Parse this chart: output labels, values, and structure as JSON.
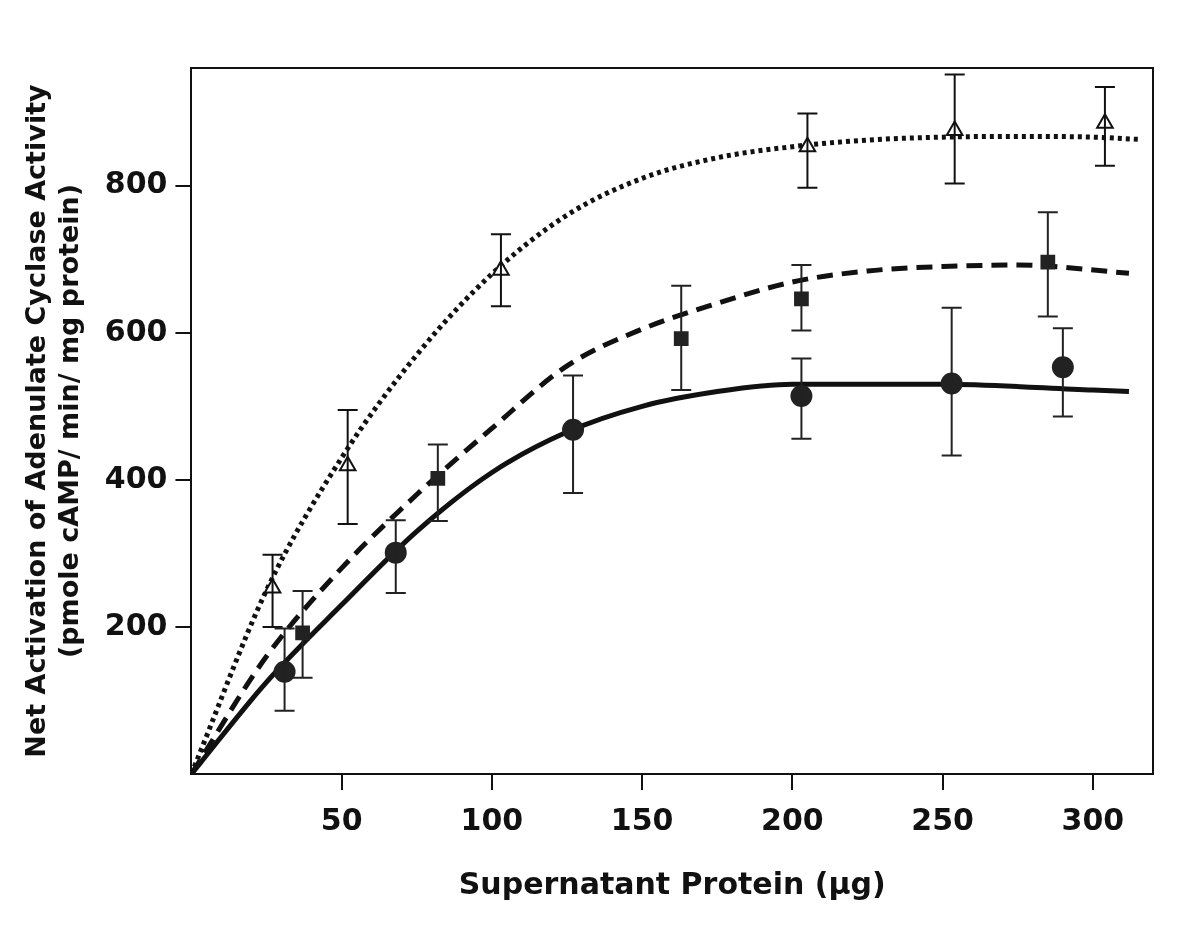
{
  "chart_data": {
    "type": "scatter",
    "xlabel": "Supernatant Protein (μg)",
    "ylabel": "Net Activation of Adenulate Cyclase Activity\n(pmole cAMP/ min/ mg protein)",
    "xlim": [
      0,
      320
    ],
    "ylim": [
      0,
      960
    ],
    "xticks": [
      50,
      100,
      150,
      200,
      250,
      300
    ],
    "yticks": [
      200,
      400,
      600,
      800
    ],
    "grid": false,
    "legend": false,
    "series": [
      {
        "type": "line",
        "color": "#111111",
        "line_style": "dotted",
        "marker": "none",
        "x": [
          0,
          25,
          50,
          75,
          100,
          125,
          150,
          175,
          200,
          225,
          250,
          275,
          300,
          315
        ],
        "values": [
          0,
          250,
          430,
          570,
          680,
          760,
          810,
          838,
          853,
          862,
          866,
          867,
          866,
          863
        ]
      },
      {
        "type": "line",
        "color": "#111111",
        "line_style": "dashed",
        "marker": "none",
        "x": [
          0,
          25,
          50,
          75,
          100,
          125,
          150,
          175,
          200,
          225,
          250,
          275,
          312
        ],
        "values": [
          0,
          160,
          280,
          380,
          470,
          555,
          605,
          640,
          669,
          684,
          690,
          692,
          681
        ]
      },
      {
        "type": "line",
        "color": "#111111",
        "line_style": "solid",
        "marker": "none",
        "x": [
          0,
          25,
          50,
          75,
          100,
          125,
          150,
          175,
          200,
          250,
          300,
          312
        ],
        "values": [
          0,
          125,
          230,
          330,
          410,
          465,
          500,
          520,
          530,
          530,
          522,
          520
        ]
      },
      {
        "color": "#111111",
        "marker": "triangle",
        "x": [
          27,
          52,
          103,
          205,
          254,
          304
        ],
        "values": [
          253,
          419,
          685,
          853,
          875,
          885
        ],
        "errors": [
          [
            200,
            298
          ],
          [
            340,
            495
          ],
          [
            636,
            734
          ],
          [
            797,
            898
          ],
          [
            803,
            951
          ],
          [
            827,
            934
          ]
        ]
      },
      {
        "color": "#222222",
        "marker": "square",
        "x": [
          37,
          82,
          163,
          203,
          285
        ],
        "values": [
          192,
          402,
          592,
          646,
          696
        ],
        "errors": [
          [
            131,
            249
          ],
          [
            344,
            448
          ],
          [
            522,
            664
          ],
          [
            603,
            692
          ],
          [
            622,
            764
          ]
        ]
      },
      {
        "color": "#222222",
        "marker": "circle",
        "x": [
          31,
          68,
          127,
          203,
          253,
          290
        ],
        "values": [
          139,
          301,
          468,
          514,
          531,
          553
        ],
        "errors": [
          [
            86,
            198
          ],
          [
            246,
            345
          ],
          [
            382,
            542
          ],
          [
            456,
            565
          ],
          [
            433,
            634
          ],
          [
            486,
            606
          ]
        ]
      }
    ]
  }
}
